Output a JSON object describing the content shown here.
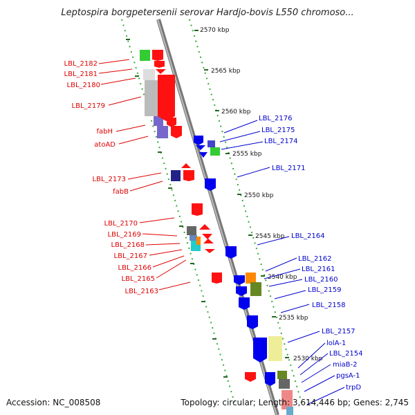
{
  "header": {
    "title": "Leptospira borgpetersenii serovar Hardjo-bovis L550 chromoso..."
  },
  "footer": {
    "accession": "Accession: NC_008508",
    "summary": "Topology: circular; Length: 3,614,446 bp; Genes: 2,745"
  },
  "colors": {
    "reverse_label": "#dd0000",
    "forward_label": "#0000cc",
    "backbone": "#888888",
    "dotted_track": "#33aa33"
  },
  "scale_ticks": [
    "2570 kbp",
    "2565 kbp",
    "2560 kbp",
    "2555 kbp",
    "2550 kbp",
    "2545 kbp",
    "2540 kbp",
    "2535 kbp",
    "2530 kbp"
  ],
  "reverse_genes": [
    "LBL_2182",
    "LBL_2181",
    "LBL_2180",
    "LBL_2179",
    "fabH",
    "atoAD",
    "LBL_2173",
    "fabB",
    "LBL_2170",
    "LBL_2169",
    "LBL_2168",
    "LBL_2167",
    "LBL_2166",
    "LBL_2165",
    "LBL_2163"
  ],
  "forward_genes": [
    "LBL_2176",
    "LBL_2175",
    "LBL_2174",
    "LBL_2171",
    "LBL_2164",
    "LBL_2162",
    "LBL_2161",
    "LBL_2160",
    "LBL_2159",
    "LBL_2158",
    "LBL_2157",
    "lolA-1",
    "LBL_2154",
    "miaB-2",
    "pgsA-1",
    "trpD"
  ]
}
